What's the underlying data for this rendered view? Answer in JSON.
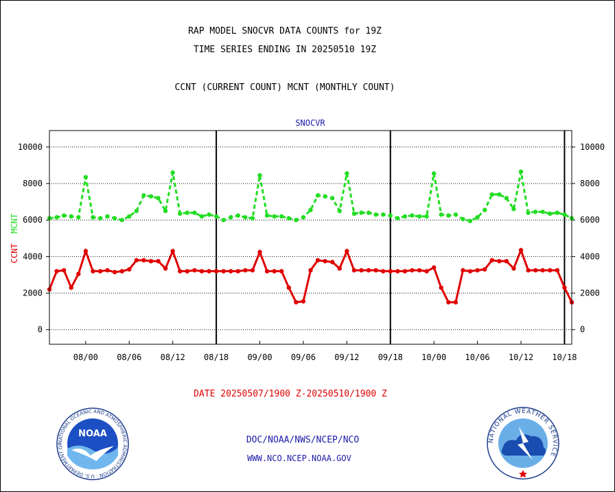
{
  "header": {
    "title_line1": "RAP MODEL SNOCVR DATA COUNTS for 19Z",
    "title_line2": "TIME SERIES ENDING IN 20250510 19Z",
    "subtitle": "CCNT (CURRENT COUNT) MCNT (MONTHLY COUNT)"
  },
  "footer": {
    "date_range": "DATE 20250507/1900 Z-20250510/1900 Z",
    "credit_line1": "DOC/NOAA/NWS/NCEP/NCO",
    "credit_line2": "WWW.NCO.NCEP.NOAA.GOV"
  },
  "logos": {
    "noaa_text": "NOAA",
    "noaa_ring_text": "NATIONAL OCEANIC AND ATMOSPHERIC ADMINISTRATION · U.S. DEPARTMENT OF COMMERCE",
    "nws_ring_text": "NATIONAL WEATHER SERVICE"
  },
  "chart_data": {
    "type": "line",
    "title": "SNOCVR",
    "ylabel_ccnt": "CCNT",
    "ylabel_mcnt": "MCNT",
    "x_tick_labels": [
      "08/00",
      "08/06",
      "08/12",
      "08/18",
      "09/00",
      "09/06",
      "09/12",
      "09/18",
      "10/00",
      "10/06",
      "10/12",
      "10/18"
    ],
    "x_tick_hours": [
      5,
      11,
      17,
      23,
      29,
      35,
      41,
      47,
      53,
      59,
      65,
      71
    ],
    "day_boundary_hours": [
      23,
      47,
      71
    ],
    "xlim": [
      0,
      72
    ],
    "ylim": [
      -800,
      10900
    ],
    "y_ticks": [
      0,
      2000,
      4000,
      6000,
      8000,
      10000
    ],
    "grid": true,
    "series": [
      {
        "name": "CCNT",
        "color": "#e00000",
        "style": "solid",
        "values": [
          2200,
          3200,
          3250,
          2300,
          3050,
          4300,
          3200,
          3200,
          3250,
          3150,
          3200,
          3300,
          3800,
          3800,
          3750,
          3750,
          3350,
          4300,
          3200,
          3200,
          3250,
          3200,
          3200,
          3200,
          3200,
          3200,
          3200,
          3250,
          3250,
          4250,
          3200,
          3200,
          3200,
          2300,
          1500,
          1550,
          3250,
          3800,
          3750,
          3700,
          3350,
          4300,
          3250,
          3250,
          3250,
          3250,
          3200,
          3200,
          3200,
          3200,
          3250,
          3250,
          3200,
          3400,
          2300,
          1500,
          1500,
          3250,
          3200,
          3250,
          3300,
          3800,
          3750,
          3750,
          3350,
          4350,
          3250,
          3250,
          3250,
          3250,
          3250,
          2300,
          1500
        ]
      },
      {
        "name": "MCNT",
        "color": "#22dd22",
        "style": "dashed",
        "values": [
          6100,
          6150,
          6250,
          6200,
          6150,
          8350,
          6150,
          6100,
          6200,
          6100,
          6000,
          6200,
          6500,
          7350,
          7300,
          7200,
          6500,
          8600,
          6350,
          6400,
          6400,
          6200,
          6300,
          6200,
          6000,
          6150,
          6250,
          6150,
          6100,
          8450,
          6250,
          6200,
          6200,
          6100,
          6000,
          6150,
          6550,
          7350,
          7300,
          7200,
          6500,
          8550,
          6350,
          6400,
          6400,
          6300,
          6300,
          6250,
          6100,
          6200,
          6250,
          6200,
          6200,
          8550,
          6300,
          6250,
          6300,
          6050,
          5950,
          6150,
          6550,
          7400,
          7400,
          7200,
          6600,
          8650,
          6400,
          6450,
          6450,
          6350,
          6400,
          6300,
          6100
        ]
      }
    ]
  }
}
